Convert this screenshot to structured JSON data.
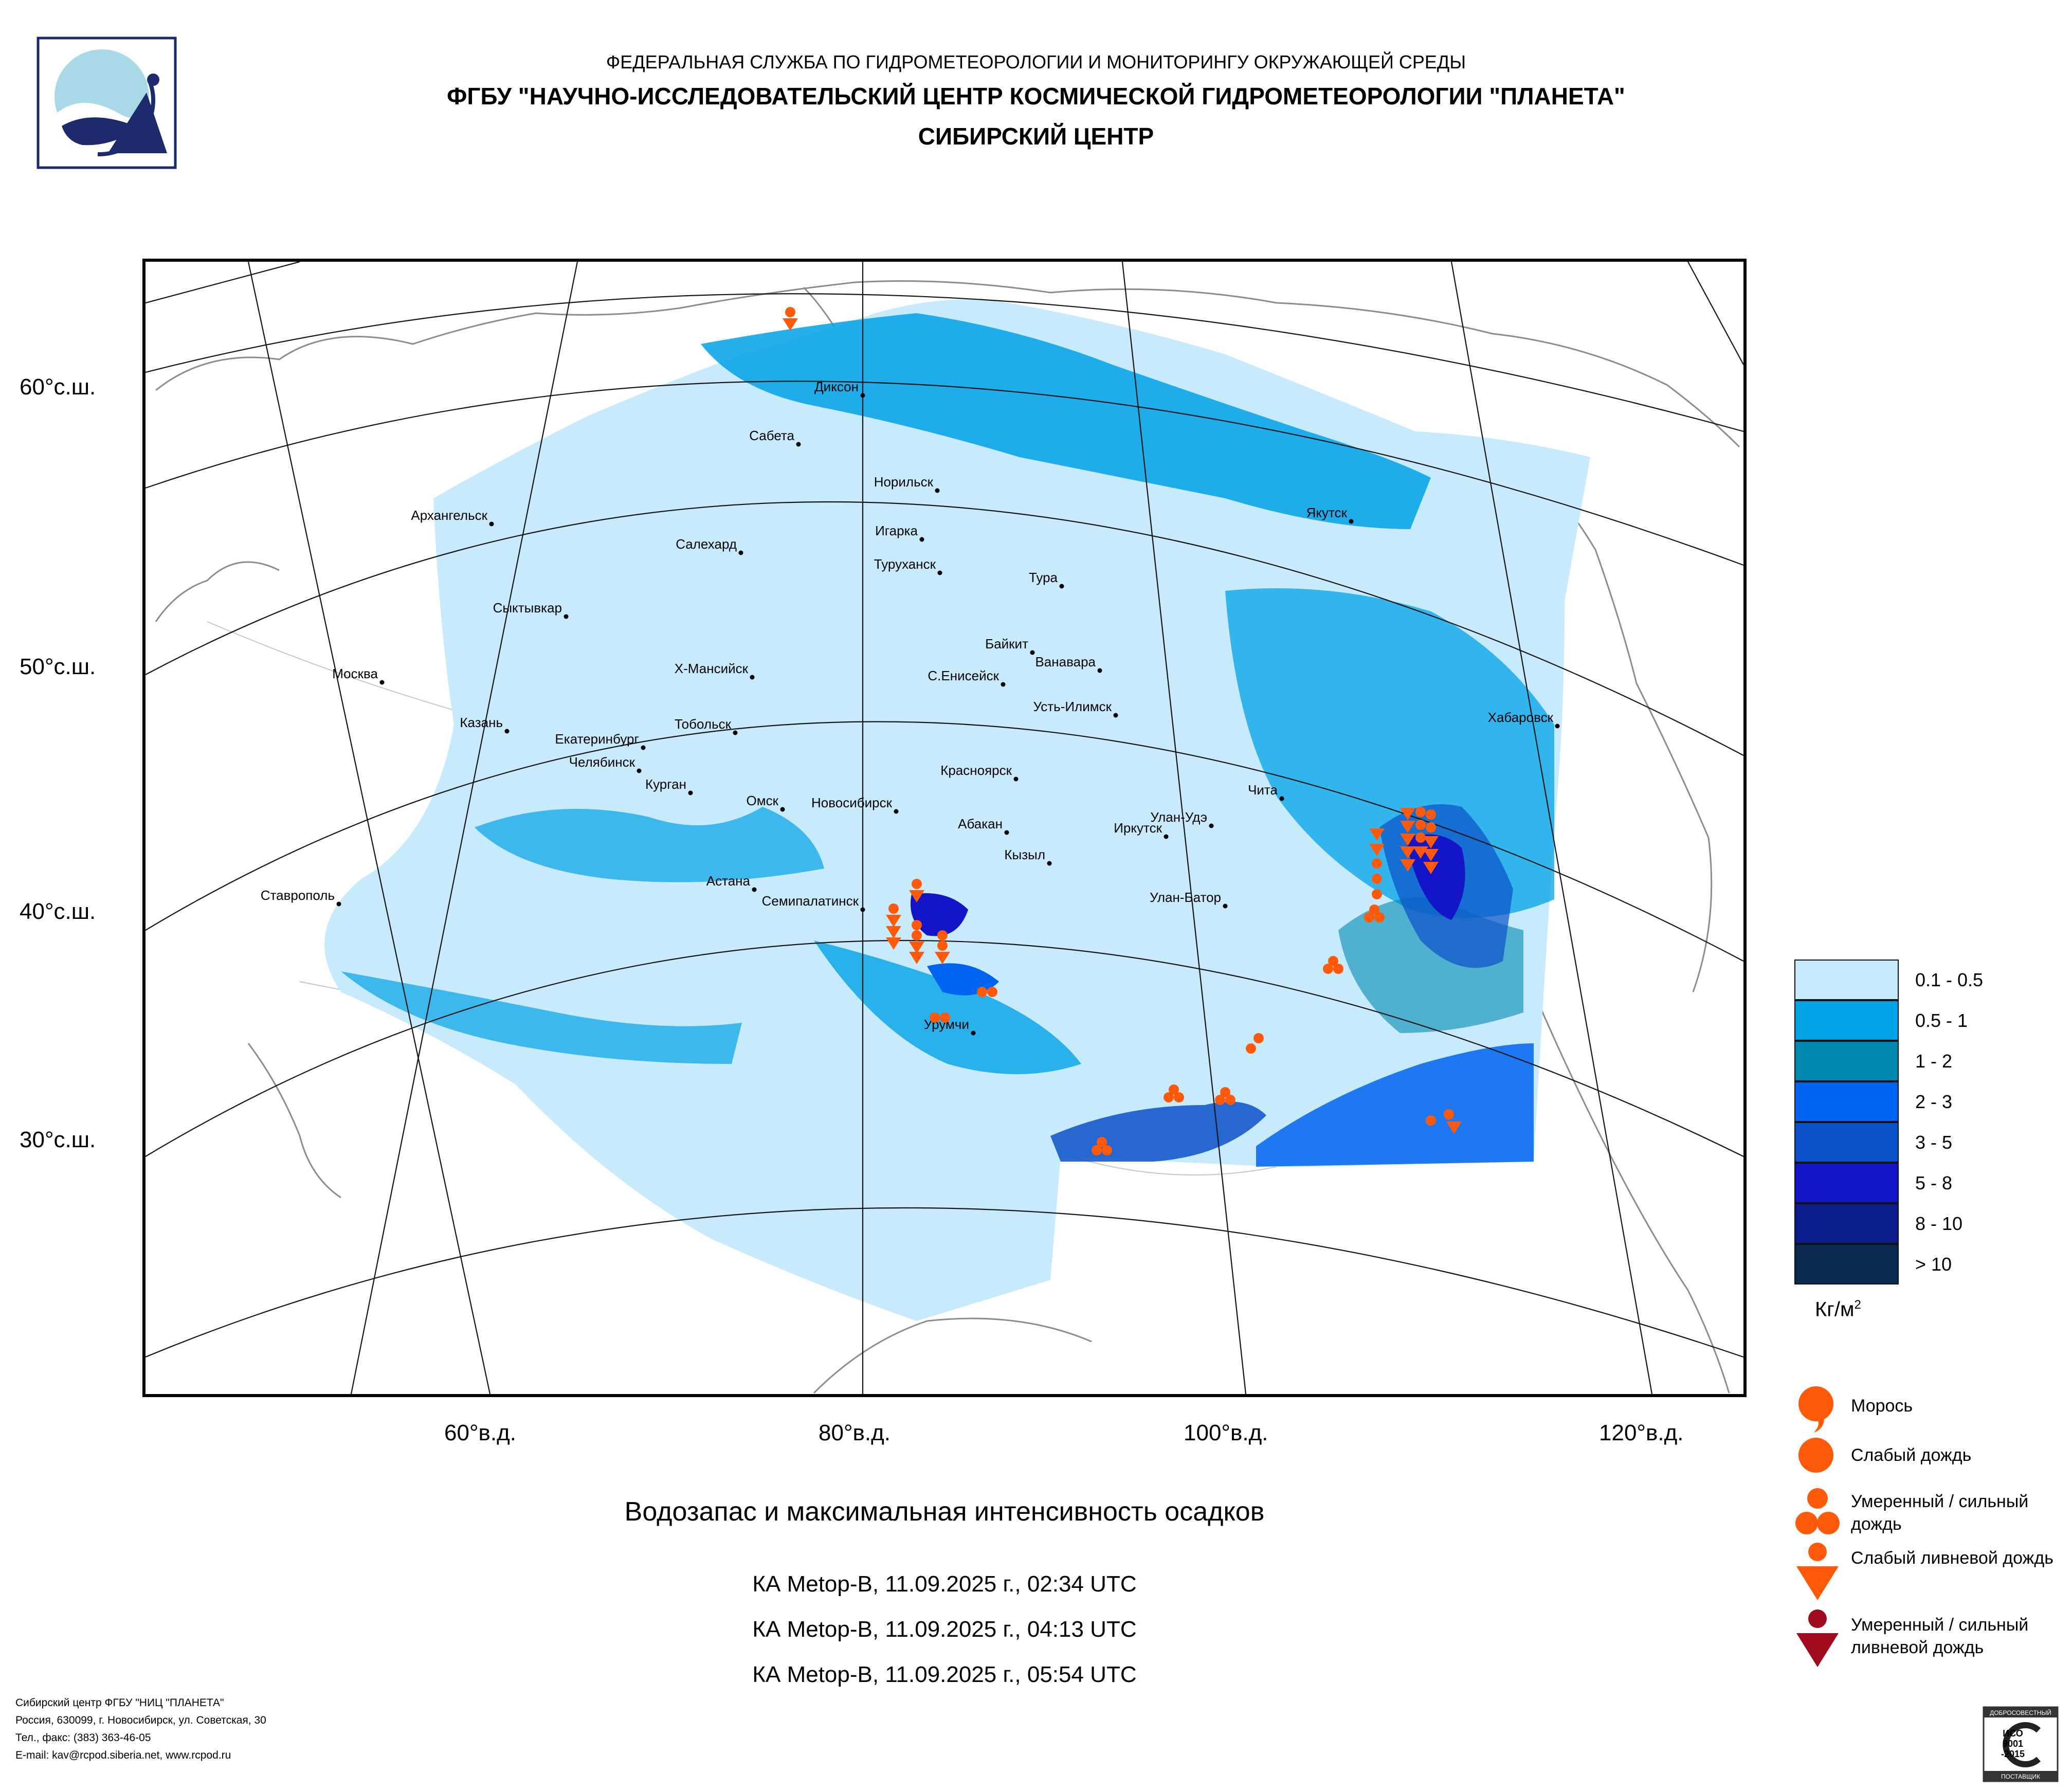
{
  "header": {
    "line1": "ФЕДЕРАЛЬНАЯ СЛУЖБА ПО ГИДРОМЕТЕОРОЛОГИИ И МОНИТОРИНГУ ОКРУЖАЮЩЕЙ СРЕДЫ",
    "line2": "ФГБУ \"НАУЧНО-ИССЛЕДОВАТЕЛЬСКИЙ ЦЕНТР КОСМИЧЕСКОЙ ГИДРОМЕТЕОРОЛОГИИ \"ПЛАНЕТА\"",
    "line3": "СИБИРСКИЙ ЦЕНТР"
  },
  "map": {
    "lat_labels": [
      "60°с.ш.",
      "50°с.ш.",
      "40°с.ш.",
      "30°с.ш."
    ],
    "lon_labels": [
      "60°в.д.",
      "80°в.д.",
      "100°в.д.",
      "120°в.д."
    ],
    "cities": [
      "Диксон",
      "Сабета",
      "Норильск",
      "Архангельск",
      "Якутск",
      "Игарка",
      "Салехард",
      "Туруханск",
      "Тура",
      "Сыктывкар",
      "Байкит",
      "Ванавара",
      "Х-Мансийск",
      "Москва",
      "С.Енисейск",
      "Усть-Илимск",
      "Хабаровск",
      "Казань",
      "Тобольск",
      "Екатеринбург",
      "Челябинск",
      "Курган",
      "Красноярск",
      "Чита",
      "Омск",
      "Новосибирск",
      "Абакан",
      "Улан-Удэ",
      "Иркутск",
      "Кызыл",
      "Астана",
      "Ставрополь",
      "Семипалатинск",
      "Улан-Батор",
      "Урумчи"
    ]
  },
  "legend": {
    "classes": [
      {
        "label": "0.1 - 0.5",
        "color": "#c8eafd"
      },
      {
        "label": "0.5 - 1",
        "color": "#00a2e6"
      },
      {
        "label": "1 - 2",
        "color": "#0088b0"
      },
      {
        "label": "2 - 3",
        "color": "#0064f0"
      },
      {
        "label": "3 - 5",
        "color": "#0a50c8"
      },
      {
        "label": "5 - 8",
        "color": "#1414c8"
      },
      {
        "label": "8 - 10",
        "color": "#0c1c8c"
      },
      {
        "label": "> 10",
        "color": "#0a2850"
      }
    ],
    "unit": "Кг/м",
    "unit_sup": "2"
  },
  "precip_types": [
    {
      "label": "Морось",
      "icon": "drizzle-icon",
      "color": "#ff5a0a"
    },
    {
      "label": "Слабый дождь",
      "icon": "light-rain-icon",
      "color": "#ff5a0a"
    },
    {
      "label": "Умеренный / сильный дождь",
      "icon": "heavy-rain-icon",
      "color": "#ff5a0a"
    },
    {
      "label": "Слабый ливневой дождь",
      "icon": "light-shower-icon",
      "color": "#ff5a0a"
    },
    {
      "label": "Умеренный / сильный ливневой дождь",
      "icon": "heavy-shower-icon",
      "color": "#a00a1e"
    }
  ],
  "caption": "Водозапас и максимальная интенсивность осадков",
  "satellite_passes": [
    "КА Metop-B, 11.09.2025 г., 02:34 UTC",
    "КА Metop-B, 11.09.2025 г., 04:13 UTC",
    "КА Metop-B, 11.09.2025 г., 05:54 UTC"
  ],
  "footer": {
    "line1": "Сибирский центр ФГБУ \"НИЦ \"ПЛАНЕТА\"",
    "line2": "Россия, 630099, г. Новосибирск, ул. Советская, 30",
    "line3": "Тел., факс: (383) 363-46-05",
    "line4": "E-mail: kav@rcpod.siberia.net, www.rcpod.ru"
  },
  "iso_badge": {
    "top": "ДОБРОСОВЕСТНЫЙ",
    "mid1": "ИСО",
    "mid2": "9001",
    "mid3": "-2015",
    "bottom": "ПОСТАВЩИК"
  }
}
